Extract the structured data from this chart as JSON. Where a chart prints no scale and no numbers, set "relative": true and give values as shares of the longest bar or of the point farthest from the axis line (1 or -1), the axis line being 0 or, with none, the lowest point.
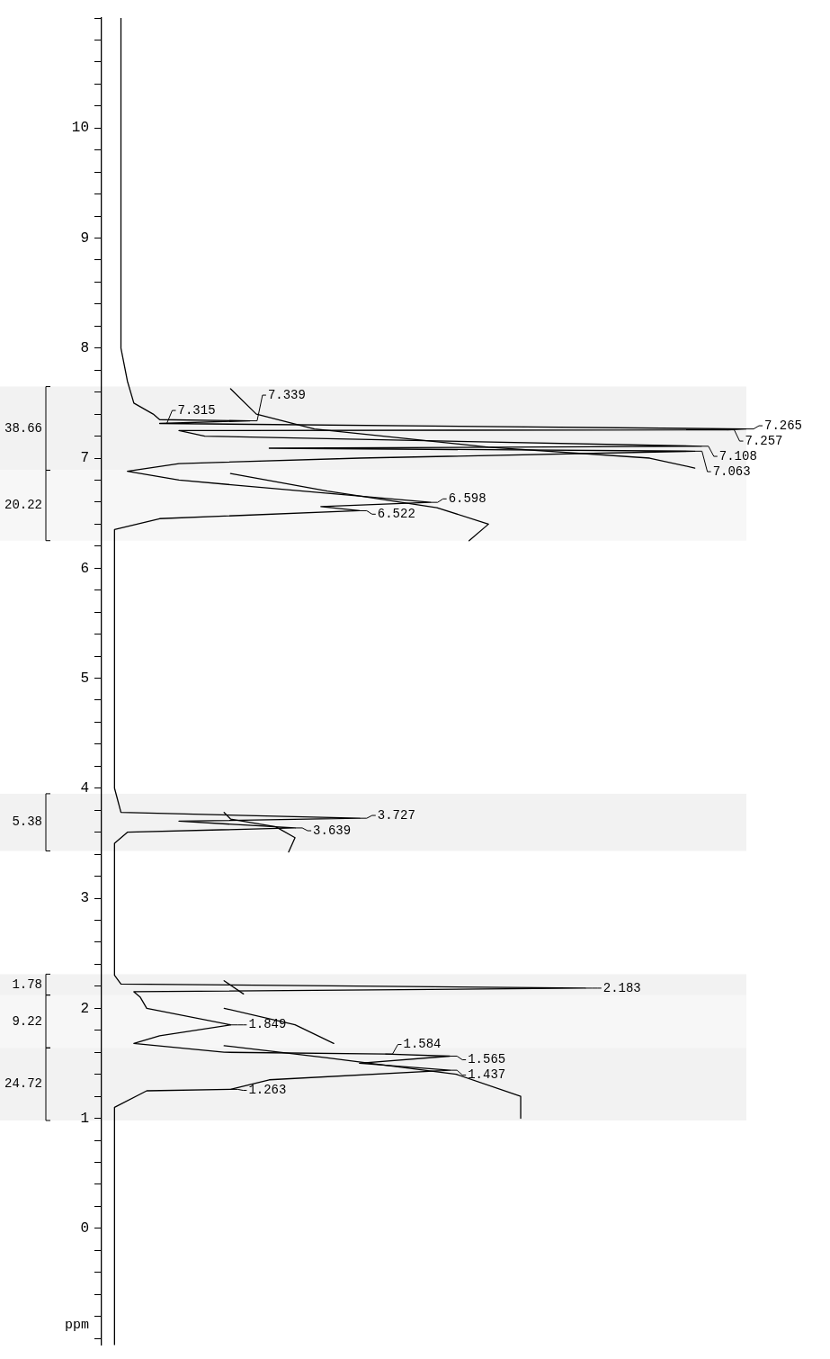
{
  "chart_data": {
    "type": "line",
    "relative": true,
    "orientation": "horizontal",
    "ylabel": "ppm",
    "ylim": [
      -1.06,
      11
    ],
    "yticks": [
      {
        "value": -1,
        "label": null
      },
      {
        "value": -0.8,
        "label": null
      },
      {
        "value": -0.6,
        "label": null
      },
      {
        "value": -0.4,
        "label": null
      },
      {
        "value": -0.2,
        "label": null
      },
      0,
      {
        "value": 0.2,
        "label": null
      },
      {
        "value": 0.4,
        "label": null
      },
      {
        "value": 0.6,
        "label": null
      },
      {
        "value": 0.8,
        "label": null
      },
      1,
      {
        "value": 1.2,
        "label": null
      },
      {
        "value": 1.4,
        "label": null
      },
      {
        "value": 1.6,
        "label": null
      },
      {
        "value": 1.8,
        "label": null
      },
      2,
      {
        "value": 2.2,
        "label": null
      },
      {
        "value": 2.4,
        "label": null
      },
      {
        "value": 2.6,
        "label": null
      },
      {
        "value": 2.8,
        "label": null
      },
      3,
      {
        "value": 3.2,
        "label": null
      },
      {
        "value": 3.4,
        "label": null
      },
      {
        "value": 3.6,
        "label": null
      },
      {
        "value": 3.8,
        "label": null
      },
      4,
      {
        "value": 4.2,
        "label": null
      },
      {
        "value": 4.4,
        "label": null
      },
      {
        "value": 4.6,
        "label": null
      },
      {
        "value": 4.8,
        "label": null
      },
      5,
      {
        "value": 5.2,
        "label": null
      },
      {
        "value": 5.4,
        "label": null
      },
      {
        "value": 5.6,
        "label": null
      },
      {
        "value": 5.8,
        "label": null
      },
      6,
      {
        "value": 6.2,
        "label": null
      },
      {
        "value": 6.4,
        "label": null
      },
      {
        "value": 6.6,
        "label": null
      },
      {
        "value": 6.8,
        "label": null
      },
      7,
      {
        "value": 7.2,
        "label": null
      },
      {
        "value": 7.4,
        "label": null
      },
      {
        "value": 7.6,
        "label": null
      },
      {
        "value": 7.8,
        "label": null
      },
      8,
      {
        "value": 8.2,
        "label": null
      },
      {
        "value": 8.4,
        "label": null
      },
      {
        "value": 8.6,
        "label": null
      },
      {
        "value": 8.8,
        "label": null
      },
      9,
      {
        "value": 9.2,
        "label": null
      },
      {
        "value": 9.4,
        "label": null
      },
      {
        "value": 9.6,
        "label": null
      },
      {
        "value": 9.8,
        "label": null
      },
      10,
      {
        "value": 10.2,
        "label": null
      },
      {
        "value": 10.4,
        "label": null
      },
      {
        "value": 10.6,
        "label": null
      },
      {
        "value": 10.8,
        "label": null
      },
      {
        "value": 11,
        "label": null
      }
    ],
    "grid": false,
    "legend": false,
    "marker": "none",
    "line_style": "solid",
    "series": [
      {
        "color": "#000000",
        "x": [
          11,
          8.0,
          7.7,
          7.5,
          7.4,
          7.35,
          7.339,
          7.315,
          7.265,
          7.257,
          7.25,
          7.2,
          7.108,
          7.09,
          7.063,
          7.0,
          6.95,
          6.88,
          6.8,
          6.598,
          6.56,
          6.522,
          6.45,
          6.35,
          6.0,
          4.0,
          3.78,
          3.727,
          3.7,
          3.639,
          3.6,
          3.5,
          2.3,
          2.22,
          2.183,
          2.15,
          2.1,
          2.0,
          1.849,
          1.75,
          1.68,
          1.6,
          1.584,
          1.565,
          1.5,
          1.437,
          1.35,
          1.263,
          1.25,
          1.1,
          0.9,
          -1.06
        ],
        "values": [
          0.03,
          0.03,
          0.04,
          0.05,
          0.08,
          0.09,
          0.23,
          0.09,
          1,
          0.97,
          0.12,
          0.16,
          0.93,
          0.26,
          0.92,
          0.4,
          0.12,
          0.04,
          0.12,
          0.51,
          0.34,
          0.4,
          0.09,
          0.02,
          0.02,
          0.02,
          0.03,
          0.4,
          0.12,
          0.3,
          0.04,
          0.02,
          0.02,
          0.03,
          0.75,
          0.05,
          0.06,
          0.07,
          0.2,
          0.09,
          0.05,
          0.19,
          0.44,
          0.54,
          0.4,
          0.54,
          0.26,
          0.2,
          0.07,
          0.02,
          0.02,
          0.02
        ]
      },
      {
        "color": "#000000",
        "x": [
          7.63,
          7.4,
          7.265,
          7.1,
          7.0,
          6.91
        ],
        "values": [
          0.2,
          0.24,
          0.33,
          0.6,
          0.85,
          0.92
        ]
      },
      {
        "color": "#000000",
        "x": [
          6.86,
          6.7,
          6.55,
          6.4,
          6.25
        ],
        "values": [
          0.2,
          0.35,
          0.52,
          0.6,
          0.57
        ]
      },
      {
        "color": "#000000",
        "x": [
          3.78,
          3.72,
          3.65,
          3.55,
          3.42
        ],
        "values": [
          0.19,
          0.2,
          0.27,
          0.3,
          0.29
        ]
      },
      {
        "color": "#000000",
        "x": [
          2.25,
          2.13
        ],
        "values": [
          0.19,
          0.22
        ]
      },
      {
        "color": "#000000",
        "x": [
          2.0,
          1.85,
          1.68
        ],
        "values": [
          0.19,
          0.3,
          0.36
        ]
      },
      {
        "color": "#000000",
        "x": [
          1.66,
          1.55,
          1.4,
          1.2,
          1.0
        ],
        "values": [
          0.19,
          0.35,
          0.55,
          0.65,
          0.65
        ]
      }
    ],
    "annotations": [
      {
        "text": "7.339",
        "y": 7.339,
        "x": 0.23
      },
      {
        "text": "7.315",
        "y": 7.315,
        "x": 0.09
      },
      {
        "text": "7.265",
        "y": 7.265,
        "x": 1
      },
      {
        "text": "7.257",
        "y": 7.257,
        "x": 0.97
      },
      {
        "text": "7.108",
        "y": 7.108,
        "x": 0.93
      },
      {
        "text": "7.063",
        "y": 7.063,
        "x": 0.92
      },
      {
        "text": "6.598",
        "y": 6.598,
        "x": 0.51
      },
      {
        "text": "6.522",
        "y": 6.522,
        "x": 0.4
      },
      {
        "text": "3.727",
        "y": 3.727,
        "x": 0.4
      },
      {
        "text": "3.639",
        "y": 3.639,
        "x": 0.3
      },
      {
        "text": "2.183",
        "y": 2.183,
        "x": 0.75
      },
      {
        "text": "1.849",
        "y": 1.849,
        "x": 0.2
      },
      {
        "text": "1.584",
        "y": 1.584,
        "x": 0.44
      },
      {
        "text": "1.565",
        "y": 1.565,
        "x": 0.54
      },
      {
        "text": "1.437",
        "y": 1.437,
        "x": 0.54
      },
      {
        "text": "1.263",
        "y": 1.263,
        "x": 0.2
      }
    ],
    "bands": [
      {
        "axis": "y",
        "from": 7.65,
        "to": 6.89,
        "label": "38.66",
        "color": "#f2f2f2"
      },
      {
        "axis": "y",
        "from": 6.89,
        "to": 6.25,
        "label": "20.22",
        "color": "#f7f7f7"
      },
      {
        "axis": "y",
        "from": 3.95,
        "to": 3.43,
        "label": "5.38",
        "color": "#f2f2f2"
      },
      {
        "axis": "y",
        "from": 2.31,
        "to": 2.12,
        "label": "1.78",
        "color": "#f2f2f2"
      },
      {
        "axis": "y",
        "from": 2.12,
        "to": 1.64,
        "label": "9.22",
        "color": "#f7f7f7"
      },
      {
        "axis": "y",
        "from": 1.64,
        "to": 0.98,
        "label": "24.72",
        "color": "#f2f2f2"
      }
    ]
  }
}
